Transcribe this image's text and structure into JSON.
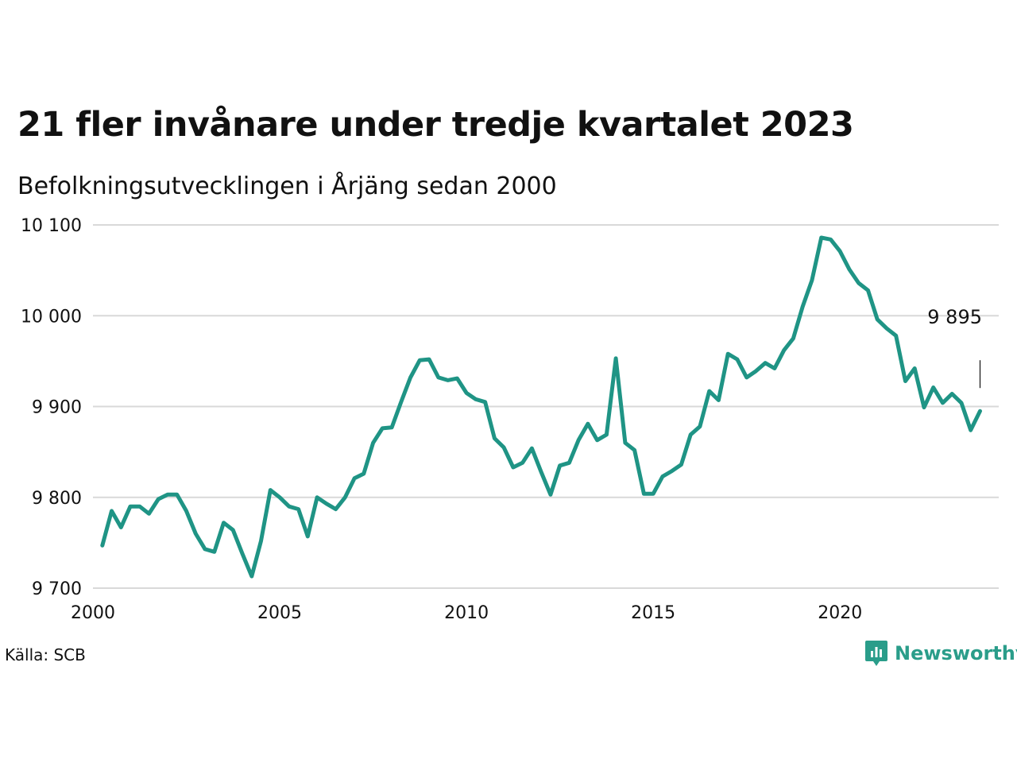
{
  "title": "21 fler invånare under tredje kvartalet 2023",
  "subtitle": "Befolkningsutvecklingen i Årjäng sedan 2000",
  "source": "Källa: SCB",
  "brand": {
    "name": "Newsworthy",
    "color": "#2a9d8a",
    "icon": "bar-chart-logo-icon"
  },
  "line_color": "#1f9485",
  "chart_data": {
    "type": "line",
    "title": "21 fler invånare under tredje kvartalet 2023",
    "subtitle": "Befolkningsutvecklingen i Årjäng sedan 2000",
    "xlabel": "",
    "ylabel": "",
    "xlim": [
      2000,
      2024.25
    ],
    "ylim": [
      9700,
      10100
    ],
    "x_ticks": [
      2000,
      2005,
      2010,
      2015,
      2020
    ],
    "x_tick_labels": [
      "2000",
      "2005",
      "2010",
      "2015",
      "2020"
    ],
    "y_ticks": [
      9700,
      9800,
      9900,
      10000,
      10100
    ],
    "y_tick_labels": [
      "9 700",
      "9 800",
      "9 900",
      "10 000",
      "10 100"
    ],
    "grid": "horizontal",
    "annotation": {
      "x": 2023.75,
      "y": 9895,
      "label": "9 895"
    },
    "x": [
      2000.25,
      2000.5,
      2000.75,
      2001.0,
      2001.25,
      2001.5,
      2001.75,
      2002.0,
      2002.25,
      2002.5,
      2002.75,
      2003.0,
      2003.25,
      2003.5,
      2003.75,
      2004.0,
      2004.25,
      2004.5,
      2004.75,
      2005.0,
      2005.25,
      2005.5,
      2005.75,
      2006.0,
      2006.25,
      2006.5,
      2006.75,
      2007.0,
      2007.25,
      2007.5,
      2007.75,
      2008.0,
      2008.25,
      2008.5,
      2008.75,
      2009.0,
      2009.25,
      2009.5,
      2009.75,
      2010.0,
      2010.25,
      2010.5,
      2010.75,
      2011.0,
      2011.25,
      2011.5,
      2011.75,
      2012.0,
      2012.25,
      2012.5,
      2012.75,
      2013.0,
      2013.25,
      2013.5,
      2013.75,
      2014.0,
      2014.25,
      2014.5,
      2014.75,
      2015.0,
      2015.25,
      2015.5,
      2015.75,
      2016.0,
      2016.25,
      2016.5,
      2016.75,
      2017.0,
      2017.25,
      2017.5,
      2017.75,
      2018.0,
      2018.25,
      2018.5,
      2018.75,
      2019.0,
      2019.25,
      2019.5,
      2019.75,
      2020.0,
      2020.25,
      2020.5,
      2020.75,
      2021.0,
      2021.25,
      2021.5,
      2021.75,
      2022.0,
      2022.25,
      2022.5,
      2022.75,
      2023.0,
      2023.25,
      2023.5,
      2023.75
    ],
    "series": [
      {
        "values": [
          9747,
          9785,
          9767,
          9790,
          9790,
          9782,
          9798,
          9803,
          9803,
          9785,
          9760,
          9743,
          9740,
          9772,
          9764,
          9738,
          9713,
          9752,
          9808,
          9800,
          9790,
          9787,
          9757,
          9800,
          9793,
          9787,
          9800,
          9821,
          9826,
          9860,
          9876,
          9877,
          9905,
          9932,
          9951,
          9952,
          9932,
          9929,
          9931,
          9915,
          9908,
          9905,
          9865,
          9855,
          9833,
          9838,
          9854,
          9828,
          9803,
          9835,
          9838,
          9863,
          9881,
          9863,
          9869,
          9953,
          9860,
          9852,
          9804,
          9804,
          9823,
          9829,
          9836,
          9869,
          9878,
          9917,
          9907,
          9958,
          9952,
          9932,
          9939,
          9948,
          9942,
          9962,
          9975,
          10010,
          10039,
          10086,
          10084,
          10071,
          10051,
          10036,
          10028,
          9996,
          9986,
          9978,
          9928,
          9942,
          9899,
          9921,
          9904,
          9914,
          9904,
          9874,
          9895
        ]
      }
    ]
  }
}
